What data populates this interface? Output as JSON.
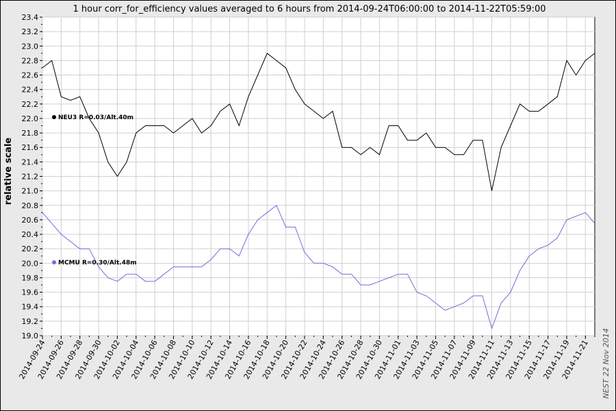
{
  "chart_data": {
    "type": "line",
    "title": "1 hour corr_for_efficiency values averaged to 6 hours from 2014-09-24T06:00:00 to 2014-11-22T05:59:00",
    "ylabel": "relative scale",
    "xlabel": "",
    "ylim": [
      19.0,
      23.4
    ],
    "yticks": [
      "19.0",
      "19.2",
      "19.4",
      "19.6",
      "19.8",
      "20.0",
      "20.2",
      "20.4",
      "20.6",
      "20.8",
      "21.0",
      "21.2",
      "21.4",
      "21.6",
      "21.8",
      "22.0",
      "22.2",
      "22.4",
      "22.6",
      "22.8",
      "23.0",
      "23.2",
      "23.4"
    ],
    "xlim": [
      "2014-09-24",
      "2014-11-22"
    ],
    "xticks": [
      "2014-09-24",
      "2014-09-26",
      "2014-09-28",
      "2014-09-30",
      "2014-10-02",
      "2014-10-04",
      "2014-10-06",
      "2014-10-08",
      "2014-10-10",
      "2014-10-12",
      "2014-10-14",
      "2014-10-16",
      "2014-10-18",
      "2014-10-20",
      "2014-10-22",
      "2014-10-24",
      "2014-10-26",
      "2014-10-28",
      "2014-10-30",
      "2014-11-01",
      "2014-11-03",
      "2014-11-05",
      "2014-11-07",
      "2014-11-09",
      "2014-11-11",
      "2014-11-13",
      "2014-11-15",
      "2014-11-17",
      "2014-11-19",
      "2014-11-21"
    ],
    "grid": true,
    "side_label": "NEST  22 Nov 2014",
    "series": [
      {
        "name": "NEU3 R=0.03/Alt.40m",
        "color": "#000000",
        "x": [
          "2014-09-24",
          "2014-09-25",
          "2014-09-26",
          "2014-09-27",
          "2014-09-28",
          "2014-09-29",
          "2014-09-30",
          "2014-10-01",
          "2014-10-02",
          "2014-10-03",
          "2014-10-04",
          "2014-10-05",
          "2014-10-06",
          "2014-10-07",
          "2014-10-08",
          "2014-10-09",
          "2014-10-10",
          "2014-10-11",
          "2014-10-12",
          "2014-10-13",
          "2014-10-14",
          "2014-10-15",
          "2014-10-16",
          "2014-10-17",
          "2014-10-18",
          "2014-10-19",
          "2014-10-20",
          "2014-10-21",
          "2014-10-22",
          "2014-10-23",
          "2014-10-24",
          "2014-10-25",
          "2014-10-26",
          "2014-10-27",
          "2014-10-28",
          "2014-10-29",
          "2014-10-30",
          "2014-10-31",
          "2014-11-01",
          "2014-11-02",
          "2014-11-03",
          "2014-11-04",
          "2014-11-05",
          "2014-11-06",
          "2014-11-07",
          "2014-11-08",
          "2014-11-09",
          "2014-11-10",
          "2014-11-11",
          "2014-11-12",
          "2014-11-13",
          "2014-11-14",
          "2014-11-15",
          "2014-11-16",
          "2014-11-17",
          "2014-11-18",
          "2014-11-19",
          "2014-11-20",
          "2014-11-21",
          "2014-11-22"
        ],
        "y": [
          22.7,
          22.8,
          22.3,
          22.25,
          22.3,
          22.0,
          21.8,
          21.4,
          21.2,
          21.4,
          21.8,
          21.9,
          21.9,
          21.9,
          21.8,
          21.9,
          22.0,
          21.8,
          21.9,
          22.1,
          22.2,
          21.9,
          22.3,
          22.6,
          22.9,
          22.8,
          22.7,
          22.4,
          22.2,
          22.1,
          22.0,
          22.1,
          21.6,
          21.6,
          21.5,
          21.6,
          21.5,
          21.9,
          21.9,
          21.7,
          21.7,
          21.8,
          21.6,
          21.6,
          21.5,
          21.5,
          21.7,
          21.7,
          21.0,
          21.6,
          21.9,
          22.2,
          22.1,
          22.1,
          22.2,
          22.3,
          22.8,
          22.6,
          22.8,
          22.9
        ]
      },
      {
        "name": "MCMU R=0.30/Alt.48m",
        "color": "#7b68d8",
        "x": [
          "2014-09-24",
          "2014-09-25",
          "2014-09-26",
          "2014-09-27",
          "2014-09-28",
          "2014-09-29",
          "2014-09-30",
          "2014-10-01",
          "2014-10-02",
          "2014-10-03",
          "2014-10-04",
          "2014-10-05",
          "2014-10-06",
          "2014-10-07",
          "2014-10-08",
          "2014-10-09",
          "2014-10-10",
          "2014-10-11",
          "2014-10-12",
          "2014-10-13",
          "2014-10-14",
          "2014-10-15",
          "2014-10-16",
          "2014-10-17",
          "2014-10-18",
          "2014-10-19",
          "2014-10-20",
          "2014-10-21",
          "2014-10-22",
          "2014-10-23",
          "2014-10-24",
          "2014-10-25",
          "2014-10-26",
          "2014-10-27",
          "2014-10-28",
          "2014-10-29",
          "2014-10-30",
          "2014-10-31",
          "2014-11-01",
          "2014-11-02",
          "2014-11-03",
          "2014-11-04",
          "2014-11-05",
          "2014-11-06",
          "2014-11-07",
          "2014-11-08",
          "2014-11-09",
          "2014-11-10",
          "2014-11-11",
          "2014-11-12",
          "2014-11-13",
          "2014-11-14",
          "2014-11-15",
          "2014-11-16",
          "2014-11-17",
          "2014-11-18",
          "2014-11-19",
          "2014-11-20",
          "2014-11-21",
          "2014-11-22"
        ],
        "y": [
          20.7,
          20.55,
          20.4,
          20.3,
          20.2,
          20.2,
          19.95,
          19.8,
          19.75,
          19.85,
          19.85,
          19.75,
          19.75,
          19.85,
          19.95,
          19.95,
          19.95,
          19.95,
          20.05,
          20.2,
          20.2,
          20.1,
          20.4,
          20.6,
          20.7,
          20.8,
          20.5,
          20.5,
          20.15,
          20.0,
          20.0,
          19.95,
          19.85,
          19.85,
          19.7,
          19.7,
          19.75,
          19.8,
          19.85,
          19.85,
          19.6,
          19.55,
          19.45,
          19.35,
          19.4,
          19.45,
          19.55,
          19.55,
          19.1,
          19.45,
          19.6,
          19.9,
          20.1,
          20.2,
          20.25,
          20.35,
          20.6,
          20.65,
          20.7,
          20.55
        ]
      }
    ]
  }
}
